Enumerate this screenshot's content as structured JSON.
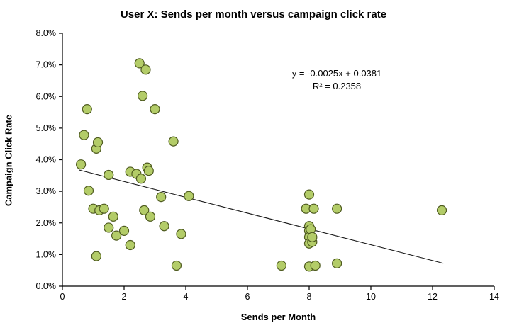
{
  "chart_data": {
    "type": "scatter",
    "title": "User X: Sends per month versus campaign click rate",
    "xlabel": "Sends per Month",
    "ylabel": "Campaign Click Rate",
    "xlim": [
      0,
      14
    ],
    "ylim": [
      0,
      0.08
    ],
    "x_tick_values": [
      0,
      2,
      4,
      6,
      8,
      10,
      12,
      14
    ],
    "x_tick_labels": [
      "0",
      "2",
      "4",
      "6",
      "8",
      "10",
      "12",
      "14"
    ],
    "y_tick_values": [
      0,
      0.01,
      0.02,
      0.03,
      0.04,
      0.05,
      0.06,
      0.07,
      0.08
    ],
    "y_tick_labels": [
      "0.0%",
      "1.0%",
      "2.0%",
      "3.0%",
      "4.0%",
      "5.0%",
      "6.0%",
      "7.0%",
      "8.0%"
    ],
    "annotation": {
      "line1": "y = -0.0025x + 0.0381",
      "line2": "R² = 0.2358"
    },
    "trendline": {
      "slope": -0.0025,
      "intercept": 0.0381,
      "x_start": 0.55,
      "x_end": 12.35
    },
    "points": [
      [
        0.6,
        0.0385
      ],
      [
        0.7,
        0.0478
      ],
      [
        0.8,
        0.056
      ],
      [
        0.85,
        0.0302
      ],
      [
        1.0,
        0.0245
      ],
      [
        1.1,
        0.0435
      ],
      [
        1.15,
        0.0455
      ],
      [
        1.1,
        0.0095
      ],
      [
        1.2,
        0.024
      ],
      [
        1.35,
        0.0245
      ],
      [
        1.5,
        0.0352
      ],
      [
        1.5,
        0.0185
      ],
      [
        1.65,
        0.022
      ],
      [
        1.75,
        0.016
      ],
      [
        2.0,
        0.0175
      ],
      [
        2.2,
        0.013
      ],
      [
        2.2,
        0.0362
      ],
      [
        2.4,
        0.0355
      ],
      [
        2.5,
        0.0705
      ],
      [
        2.55,
        0.034
      ],
      [
        2.6,
        0.0602
      ],
      [
        2.65,
        0.024
      ],
      [
        2.7,
        0.0685
      ],
      [
        2.75,
        0.0375
      ],
      [
        2.8,
        0.0365
      ],
      [
        2.85,
        0.022
      ],
      [
        3.0,
        0.056
      ],
      [
        3.2,
        0.0282
      ],
      [
        3.3,
        0.019
      ],
      [
        3.6,
        0.0458
      ],
      [
        3.7,
        0.0065
      ],
      [
        3.85,
        0.0165
      ],
      [
        4.1,
        0.0285
      ],
      [
        7.1,
        0.0065
      ],
      [
        7.9,
        0.0245
      ],
      [
        8.0,
        0.029
      ],
      [
        8.0,
        0.019
      ],
      [
        8.0,
        0.0175
      ],
      [
        8.0,
        0.0155
      ],
      [
        8.0,
        0.0135
      ],
      [
        8.0,
        0.0062
      ],
      [
        8.05,
        0.018
      ],
      [
        8.1,
        0.014
      ],
      [
        8.1,
        0.0155
      ],
      [
        8.15,
        0.0245
      ],
      [
        8.2,
        0.0065
      ],
      [
        8.9,
        0.0245
      ],
      [
        8.9,
        0.0072
      ],
      [
        12.3,
        0.024
      ]
    ],
    "colors": {
      "point_fill": "#b3cc68",
      "point_stroke": "#4f5b20",
      "axis": "#000000",
      "trendline": "#1a1a1a"
    }
  }
}
